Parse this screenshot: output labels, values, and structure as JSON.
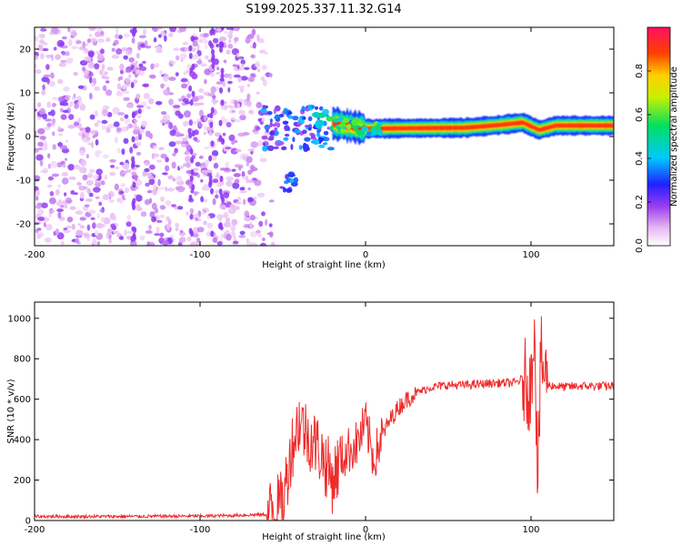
{
  "title": "S199.2025.337.11.32.G14",
  "colors": {
    "snr_line": "#ef2b2b",
    "axis": "#000000",
    "background": "#ffffff"
  },
  "chart_data": [
    {
      "type": "heatmap",
      "xlabel": "Height of straight line (km)",
      "ylabel": "Frequency (Hz)",
      "xlim": [
        -200,
        150
      ],
      "ylim": [
        -25,
        25
      ],
      "xticks": [
        "-200",
        "-100",
        "0",
        "100"
      ],
      "yticks": [
        "20",
        "10",
        "0",
        "-10",
        "-20"
      ],
      "colorbar": {
        "label": "Normalized spectral amplitude",
        "range": [
          0,
          1
        ],
        "ticks": [
          "0.0",
          "0.2",
          "0.4",
          "0.6",
          "0.8"
        ]
      },
      "features": [
        {
          "name": "noise",
          "x_range": [
            -200,
            -60
          ],
          "freq_range": [
            -25,
            25
          ],
          "amplitude": 0.08
        },
        {
          "name": "onset-scatter",
          "x_range": [
            -62,
            -20
          ],
          "freq_range": [
            -14,
            8
          ],
          "amplitude": 0.25
        },
        {
          "name": "carrier",
          "x_range": [
            -20,
            150
          ],
          "freq": [
            [
              -20,
              3
            ],
            [
              0,
              1.8
            ],
            [
              60,
              2.0
            ],
            [
              80,
              2.6
            ],
            [
              95,
              3.2
            ],
            [
              105,
              1.5
            ],
            [
              115,
              2.5
            ],
            [
              150,
              2.5
            ]
          ],
          "amplitude": 0.95
        }
      ]
    },
    {
      "type": "line",
      "xlabel": "Height of straight line (km)",
      "ylabel": "SNR (10 * v/v)",
      "xlim": [
        -200,
        150
      ],
      "ylim": [
        0,
        1080
      ],
      "xticks": [
        "-200",
        "-100",
        "0",
        "100"
      ],
      "yticks": [
        "1000",
        "800",
        "600",
        "400",
        "200",
        "0"
      ],
      "series": [
        {
          "name": "SNR",
          "x": [
            -200,
            -150,
            -100,
            -80,
            -60,
            -50,
            -45,
            -40,
            -35,
            -30,
            -25,
            -20,
            -15,
            -10,
            -5,
            0,
            5,
            10,
            15,
            20,
            25,
            30,
            40,
            50,
            60,
            70,
            80,
            90,
            95,
            100,
            102,
            104,
            106,
            110,
            120,
            130,
            150
          ],
          "values": [
            20,
            20,
            22,
            25,
            30,
            80,
            350,
            500,
            420,
            380,
            300,
            200,
            300,
            350,
            380,
            480,
            300,
            420,
            500,
            560,
            600,
            630,
            660,
            670,
            670,
            675,
            680,
            680,
            700,
            650,
            1050,
            200,
            800,
            670,
            660,
            665,
            665
          ]
        }
      ]
    }
  ]
}
